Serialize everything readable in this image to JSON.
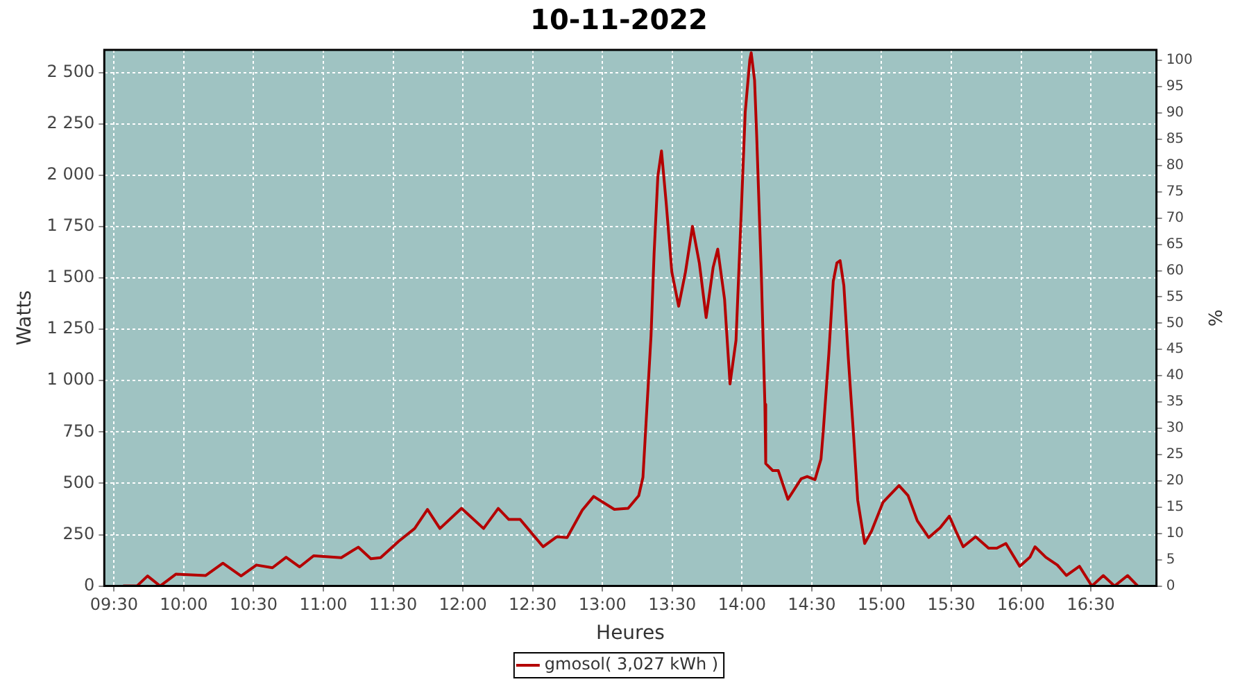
{
  "chart_data": {
    "type": "line",
    "title": "10-11-2022",
    "xlabel": "Heures",
    "ylabel": "Watts",
    "y2label": "%",
    "xlim": [
      9.43,
      16.97
    ],
    "xticks": [
      {
        "value": 9.5,
        "label": "09:30"
      },
      {
        "value": 10,
        "label": "10:00"
      },
      {
        "value": 10.5,
        "label": "10:30"
      },
      {
        "value": 11,
        "label": "11:00"
      },
      {
        "value": 11.5,
        "label": "11:30"
      },
      {
        "value": 12,
        "label": "12:00"
      },
      {
        "value": 12.5,
        "label": "12:30"
      },
      {
        "value": 13,
        "label": "13:00"
      },
      {
        "value": 13.5,
        "label": "13:30"
      },
      {
        "value": 14,
        "label": "14:00"
      },
      {
        "value": 14.5,
        "label": "14:30"
      },
      {
        "value": 15,
        "label": "15:00"
      },
      {
        "value": 15.5,
        "label": "15:30"
      },
      {
        "value": 16,
        "label": "16:00"
      },
      {
        "value": 16.5,
        "label": "16:30"
      }
    ],
    "ylim": [
      0,
      2610
    ],
    "yticks": [
      0,
      250,
      500,
      750,
      {
        "value": 1000,
        "label": "1 000"
      },
      {
        "value": 1250,
        "label": "1 250"
      },
      {
        "value": 1500,
        "label": "1 500"
      },
      {
        "value": 1750,
        "label": "1 750"
      },
      {
        "value": 2000,
        "label": "2 000"
      },
      {
        "value": 2250,
        "label": "2 250"
      },
      {
        "value": 2500,
        "label": "2 500"
      }
    ],
    "y2lim": [
      0,
      102
    ],
    "y2ticks": [
      0,
      5,
      10,
      15,
      20,
      25,
      30,
      35,
      40,
      45,
      50,
      55,
      60,
      65,
      70,
      75,
      80,
      85,
      90,
      95,
      100
    ],
    "grid": true,
    "legend": "bottom",
    "marker": "none",
    "line_style": "solid",
    "x": [
      9.565,
      9.664,
      9.74,
      9.83,
      9.944,
      10.157,
      10.28,
      10.41,
      10.52,
      10.635,
      10.733,
      10.83,
      10.93,
      11.128,
      11.25,
      11.34,
      11.41,
      11.54,
      11.654,
      11.746,
      11.835,
      11.99,
      12.148,
      12.253,
      12.329,
      12.41,
      12.575,
      12.674,
      12.747,
      12.855,
      12.937,
      13.085,
      13.184,
      13.26,
      13.29,
      13.305,
      13.348,
      13.37,
      13.397,
      13.423,
      13.457,
      13.497,
      13.546,
      13.595,
      13.645,
      13.694,
      13.743,
      13.793,
      13.826,
      13.875,
      13.914,
      13.957,
      13.997,
      14.023,
      14.056,
      14.066,
      14.09,
      14.105,
      14.138,
      14.164,
      14.17,
      14.22,
      14.26,
      14.329,
      14.424,
      14.467,
      14.523,
      14.566,
      14.582,
      14.622,
      14.654,
      14.68,
      14.703,
      14.73,
      14.762,
      14.8,
      14.829,
      14.879,
      14.928,
      15.01,
      15.125,
      15.19,
      15.256,
      15.338,
      15.42,
      15.486,
      15.536,
      15.585,
      15.674,
      15.767,
      15.826,
      15.891,
      15.99,
      16.063,
      16.1,
      16.177,
      16.26,
      16.325,
      16.418,
      16.507,
      16.589,
      16.67,
      16.763,
      16.836
    ],
    "series": [
      {
        "name": "gmosol( 3,027 kWh )",
        "color": "#b40000",
        "values": [
          0,
          0,
          49,
          0,
          58,
          51,
          111,
          49,
          102,
          89,
          140,
          93,
          147,
          138,
          189,
          133,
          138,
          218,
          280,
          373,
          280,
          378,
          280,
          378,
          324,
          324,
          191,
          240,
          236,
          369,
          436,
          373,
          378,
          440,
          529,
          707,
          1218,
          1618,
          1996,
          2118,
          1862,
          1529,
          1362,
          1529,
          1751,
          1573,
          1307,
          1551,
          1640,
          1396,
          984,
          1196,
          1862,
          2307,
          2562,
          2596,
          2462,
          2196,
          1529,
          884,
          596,
          562,
          562,
          422,
          522,
          533,
          518,
          618,
          751,
          1129,
          1484,
          1573,
          1584,
          1462,
          1107,
          729,
          418,
          207,
          267,
          407,
          489,
          440,
          318,
          236,
          284,
          340,
          262,
          191,
          240,
          184,
          184,
          207,
          96,
          140,
          191,
          140,
          102,
          51,
          96,
          0,
          51,
          0,
          51,
          0
        ]
      }
    ]
  }
}
